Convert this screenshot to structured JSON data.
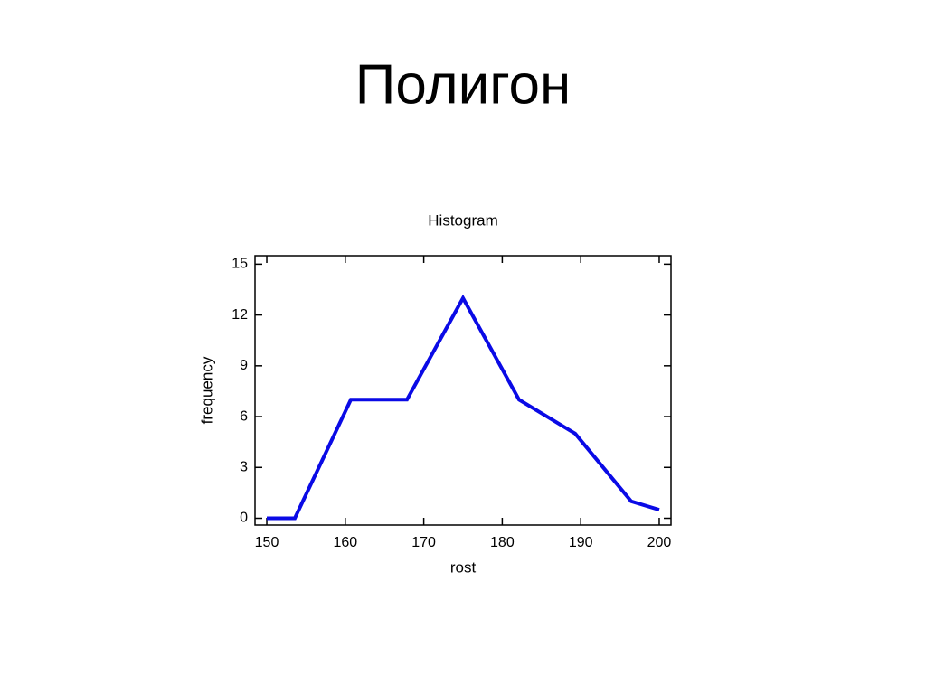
{
  "slide_title": "Полигон",
  "chart_data": {
    "type": "line",
    "title": "Histogram",
    "x_label": "rost",
    "y_label": "frequency",
    "x": [
      150,
      153.57,
      160.71,
      167.86,
      175,
      182.14,
      189.29,
      196.43,
      200
    ],
    "values": [
      0,
      0,
      7,
      7,
      13,
      7,
      5,
      1,
      0.5
    ],
    "color": "#0a0ae6",
    "xlim": [
      148.5,
      201.5
    ],
    "xticks": [
      150,
      160,
      170,
      180,
      190,
      200
    ],
    "ylim": [
      -0.4,
      15.5
    ],
    "yticks": [
      0,
      3,
      6,
      9,
      12,
      15
    ],
    "grid": false
  }
}
